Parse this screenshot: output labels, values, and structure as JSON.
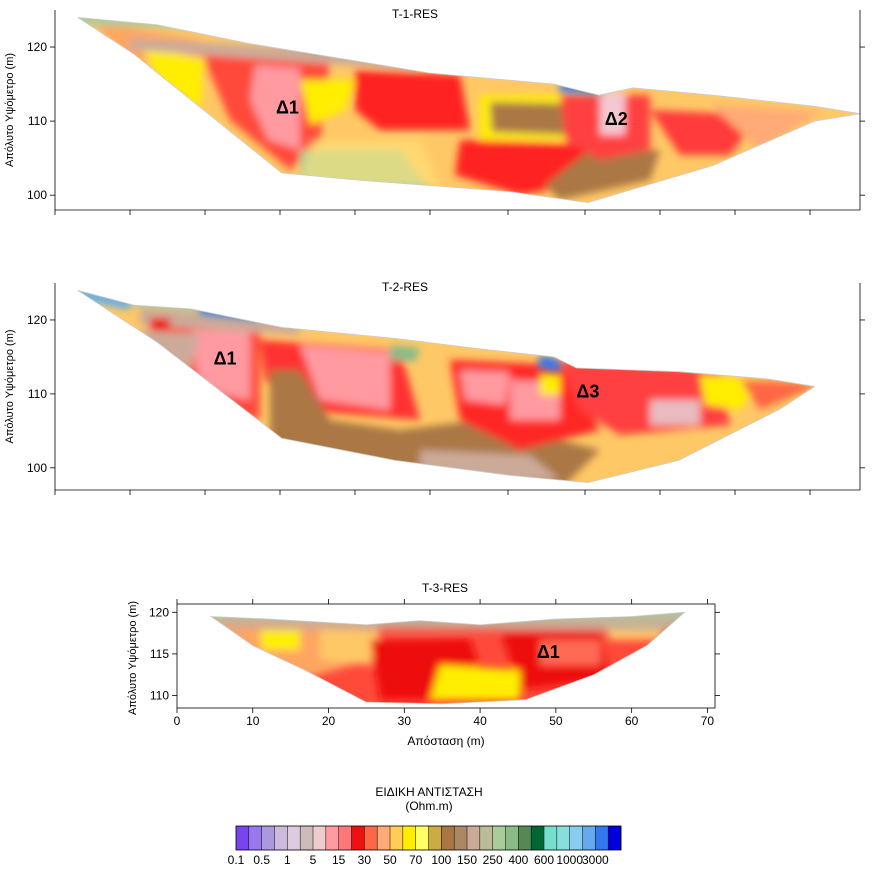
{
  "chart_data": [
    {
      "type": "heatmap",
      "title": "T-1-RES",
      "ylabel": "Απόλυτο Υψόμετρο (m)",
      "xlabel": "",
      "xlim": [
        0,
        71
      ],
      "ylim": [
        98,
        125
      ],
      "yticks": [
        "100",
        "110",
        "120"
      ],
      "xtick_labels_shown": false,
      "surface": [
        [
          2,
          124
        ],
        [
          9,
          123
        ],
        [
          17,
          120.5
        ],
        [
          25,
          118.5
        ],
        [
          33,
          116.5
        ],
        [
          44,
          115
        ],
        [
          48,
          113.5
        ],
        [
          51,
          114.5
        ],
        [
          58,
          113.5
        ],
        [
          67,
          112
        ],
        [
          71,
          111
        ]
      ],
      "bottom": [
        [
          2,
          124
        ],
        [
          7,
          119
        ],
        [
          20,
          103
        ],
        [
          27,
          102
        ],
        [
          40,
          100.5
        ],
        [
          47,
          99
        ],
        [
          58,
          104
        ],
        [
          67,
          110
        ],
        [
          71,
          111
        ]
      ],
      "annotations": [
        {
          "text": "Δ1",
          "x": 20.5,
          "y": 111
        },
        {
          "text": "Δ2",
          "x": 49.5,
          "y": 109.5
        }
      ]
    },
    {
      "type": "heatmap",
      "title": "T-2-RES",
      "ylabel": "Απόλυτο Υψόμετρο (m)",
      "xlabel": "",
      "xlim": [
        0,
        71
      ],
      "ylim": [
        97,
        125
      ],
      "yticks": [
        "100",
        "110",
        "120"
      ],
      "xtick_labels_shown": false,
      "surface": [
        [
          2,
          124
        ],
        [
          7,
          122
        ],
        [
          12,
          121.5
        ],
        [
          20,
          119
        ],
        [
          30,
          117.5
        ],
        [
          38,
          116
        ],
        [
          44,
          115
        ],
        [
          46,
          113.5
        ],
        [
          55,
          113
        ],
        [
          63,
          112
        ],
        [
          67,
          111
        ]
      ],
      "bottom": [
        [
          2,
          124
        ],
        [
          9,
          117
        ],
        [
          20,
          104
        ],
        [
          30,
          101
        ],
        [
          40,
          99
        ],
        [
          47,
          98
        ],
        [
          55,
          101
        ],
        [
          64,
          108
        ],
        [
          67,
          111
        ]
      ],
      "annotations": [
        {
          "text": "Δ1",
          "x": 15,
          "y": 114
        },
        {
          "text": "Δ3",
          "x": 47,
          "y": 109.5
        }
      ]
    },
    {
      "type": "heatmap",
      "title": "T-3-RES",
      "ylabel": "Απόλυτο Υψόμετρο (m)",
      "xlabel": "Απόσταση (m)",
      "xlim": [
        0,
        71
      ],
      "ylim": [
        108.5,
        121
      ],
      "xticks": [
        "0",
        "10",
        "20",
        "30",
        "40",
        "50",
        "60",
        "70"
      ],
      "yticks": [
        "110",
        "115",
        "120"
      ],
      "surface": [
        [
          4.5,
          119.5
        ],
        [
          12,
          119.2
        ],
        [
          25,
          118.5
        ],
        [
          32,
          119
        ],
        [
          40,
          118.5
        ],
        [
          50,
          119.2
        ],
        [
          60,
          119.5
        ],
        [
          67,
          120
        ]
      ],
      "bottom": [
        [
          4.5,
          119.5
        ],
        [
          10,
          116
        ],
        [
          17,
          113
        ],
        [
          25,
          109.2
        ],
        [
          35,
          109
        ],
        [
          46,
          109.5
        ],
        [
          55,
          112.5
        ],
        [
          62,
          116
        ],
        [
          67,
          120
        ]
      ],
      "annotations": [
        {
          "text": "Δ1",
          "x": 49,
          "y": 114.5
        }
      ]
    }
  ],
  "legend": {
    "title": "ΕΙΔΙΚΗ ΑΝΤΙΣΤΑΣΗ",
    "unit": "(Ohm.m)",
    "labels": [
      "0.1",
      "0.5",
      "1",
      "5",
      "15",
      "30",
      "50",
      "70",
      "100",
      "150",
      "250",
      "400",
      "600",
      "1000",
      "3000"
    ],
    "colors": [
      "#7744ee",
      "#9977ee",
      "#aa99dd",
      "#ccbbdd",
      "#ddccdd",
      "#ccbbbb",
      "#eecccc",
      "#ff9aa0",
      "#ff7777",
      "#ee1111",
      "#ff6644",
      "#ffaa77",
      "#ffcc55",
      "#ffee00",
      "#ffff66",
      "#ccaa44",
      "#aa7744",
      "#aa8866",
      "#ccaa99",
      "#bbbb99",
      "#aacc99",
      "#88bb88",
      "#558855",
      "#006633",
      "#77ddcc",
      "#88dddd",
      "#88ccee",
      "#66aaee",
      "#3377ee",
      "#0000dd"
    ]
  }
}
